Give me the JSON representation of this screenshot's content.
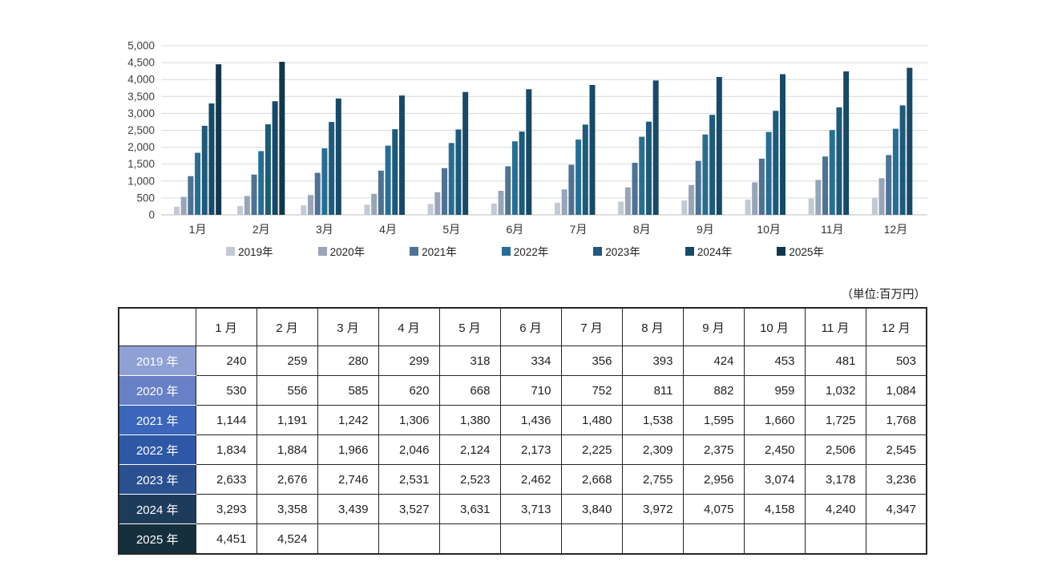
{
  "unit_label": "（単位:百万円）",
  "chart_data": {
    "type": "bar",
    "title": "",
    "xlabel": "",
    "ylabel": "",
    "ylim": [
      0,
      5000
    ],
    "ytick_step": 500,
    "grid": true,
    "legend_position": "bottom",
    "categories": [
      "1月",
      "2月",
      "3月",
      "4月",
      "5月",
      "6月",
      "7月",
      "8月",
      "9月",
      "10月",
      "11月",
      "12月"
    ],
    "series": [
      {
        "name": "2019年",
        "color": "#c2c9d4",
        "values": [
          240,
          259,
          280,
          299,
          318,
          334,
          356,
          393,
          424,
          453,
          481,
          503
        ]
      },
      {
        "name": "2020年",
        "color": "#97a5b8",
        "values": [
          530,
          556,
          585,
          620,
          668,
          710,
          752,
          811,
          882,
          959,
          1032,
          1084
        ]
      },
      {
        "name": "2021年",
        "color": "#4d7294",
        "values": [
          1144,
          1191,
          1242,
          1306,
          1380,
          1436,
          1480,
          1538,
          1595,
          1660,
          1725,
          1768
        ]
      },
      {
        "name": "2022年",
        "color": "#286e93",
        "values": [
          1834,
          1884,
          1966,
          2046,
          2124,
          2173,
          2225,
          2309,
          2375,
          2450,
          2506,
          2545
        ]
      },
      {
        "name": "2023年",
        "color": "#1d5a7c",
        "values": [
          2633,
          2676,
          2746,
          2531,
          2523,
          2462,
          2668,
          2755,
          2956,
          3074,
          3178,
          3236
        ]
      },
      {
        "name": "2024年",
        "color": "#164a67",
        "values": [
          3293,
          3358,
          3439,
          3527,
          3631,
          3713,
          3840,
          3972,
          4075,
          4158,
          4240,
          4347
        ]
      },
      {
        "name": "2025年",
        "color": "#11374c",
        "values": [
          4451,
          4524,
          null,
          null,
          null,
          null,
          null,
          null,
          null,
          null,
          null,
          null
        ]
      }
    ]
  },
  "table": {
    "corner_label": "",
    "col_headers": [
      "1 月",
      "2 月",
      "3 月",
      "4 月",
      "5 月",
      "6 月",
      "7 月",
      "8 月",
      "9 月",
      "10 月",
      "11 月",
      "12 月"
    ],
    "row_labels": [
      "2019 年",
      "2020 年",
      "2021 年",
      "2022 年",
      "2023 年",
      "2024 年",
      "2025 年"
    ],
    "row_colors": [
      "#8fa0d4",
      "#6780c6",
      "#3b66bb",
      "#2e58a6",
      "#2a5090",
      "#1d3c5c",
      "#152f3d"
    ]
  }
}
